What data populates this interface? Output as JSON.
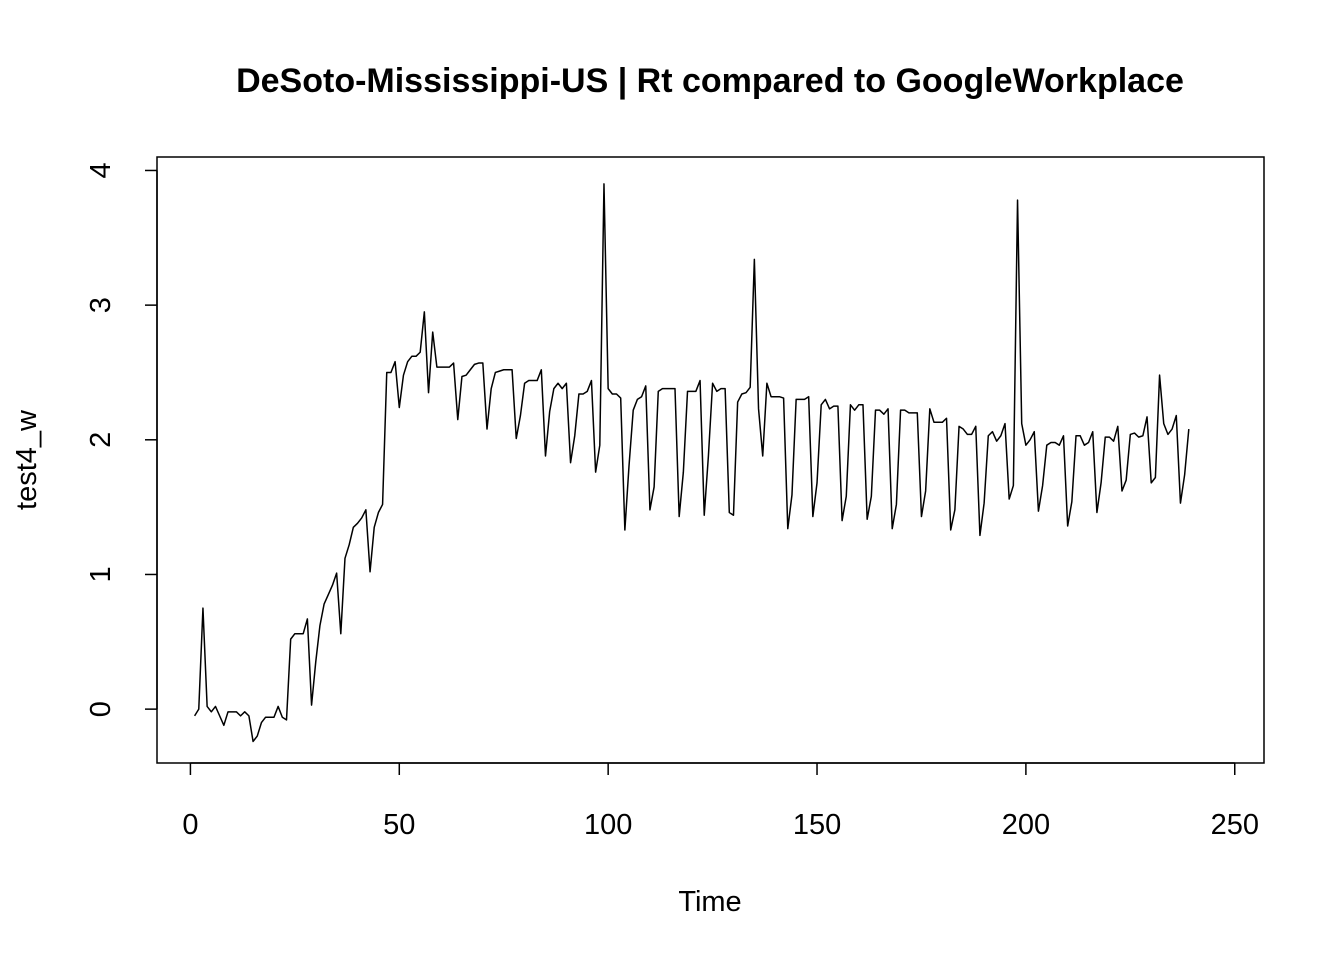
{
  "chart_data": {
    "type": "line",
    "title": "DeSoto-Mississippi-US | Rt compared to GoogleWorkplace",
    "xlabel": "Time",
    "ylabel": "test4_w",
    "xlim": [
      -8,
      257
    ],
    "ylim": [
      -0.4,
      4.1
    ],
    "x_ticks": [
      0,
      50,
      100,
      150,
      200,
      250
    ],
    "y_ticks": [
      0,
      1,
      2,
      3,
      4
    ],
    "x_tick_labels": [
      "0",
      "50",
      "100",
      "150",
      "200",
      "250"
    ],
    "y_tick_labels": [
      "0",
      "1",
      "2",
      "3",
      "4"
    ],
    "grid": false,
    "color": "#000000",
    "series": [
      {
        "x_start": 1,
        "values": [
          -0.05,
          0.0,
          0.75,
          0.02,
          -0.02,
          0.02,
          -0.05,
          -0.12,
          -0.02,
          -0.02,
          -0.02,
          -0.05,
          -0.02,
          -0.05,
          -0.24,
          -0.2,
          -0.1,
          -0.06,
          -0.06,
          -0.06,
          0.02,
          -0.06,
          -0.08,
          0.52,
          0.56,
          0.56,
          0.56,
          0.67,
          0.03,
          0.35,
          0.62,
          0.78,
          0.85,
          0.92,
          1.01,
          0.56,
          1.12,
          1.22,
          1.35,
          1.38,
          1.42,
          1.48,
          1.02,
          1.35,
          1.46,
          1.52,
          2.5,
          2.5,
          2.58,
          2.24,
          2.48,
          2.58,
          2.62,
          2.62,
          2.65,
          2.95,
          2.35,
          2.8,
          2.54,
          2.54,
          2.54,
          2.54,
          2.57,
          2.15,
          2.47,
          2.48,
          2.52,
          2.56,
          2.57,
          2.57,
          2.08,
          2.38,
          2.5,
          2.51,
          2.52,
          2.52,
          2.52,
          2.01,
          2.18,
          2.42,
          2.44,
          2.44,
          2.44,
          2.52,
          1.88,
          2.21,
          2.38,
          2.42,
          2.38,
          2.42,
          1.83,
          2.03,
          2.34,
          2.34,
          2.36,
          2.44,
          1.76,
          1.96,
          3.9,
          2.38,
          2.34,
          2.34,
          2.31,
          1.33,
          1.81,
          2.22,
          2.3,
          2.32,
          2.4,
          1.48,
          1.65,
          2.36,
          2.38,
          2.38,
          2.38,
          2.38,
          1.43,
          1.76,
          2.36,
          2.36,
          2.36,
          2.44,
          1.44,
          1.88,
          2.42,
          2.36,
          2.38,
          2.38,
          1.46,
          1.44,
          2.28,
          2.34,
          2.35,
          2.39,
          3.34,
          2.23,
          1.88,
          2.42,
          2.32,
          2.32,
          2.32,
          2.31,
          1.34,
          1.59,
          2.3,
          2.3,
          2.3,
          2.32,
          1.43,
          1.68,
          2.26,
          2.3,
          2.23,
          2.25,
          2.25,
          1.4,
          1.58,
          2.26,
          2.22,
          2.26,
          2.26,
          1.41,
          1.58,
          2.22,
          2.22,
          2.19,
          2.23,
          1.34,
          1.52,
          2.22,
          2.22,
          2.2,
          2.2,
          2.2,
          1.43,
          1.62,
          2.23,
          2.13,
          2.13,
          2.13,
          2.16,
          1.33,
          1.48,
          2.1,
          2.08,
          2.04,
          2.04,
          2.1,
          1.29,
          1.53,
          2.03,
          2.06,
          1.99,
          2.03,
          2.12,
          1.56,
          1.66,
          3.78,
          2.12,
          1.96,
          2.0,
          2.06,
          1.47,
          1.66,
          1.96,
          1.98,
          1.98,
          1.96,
          2.03,
          1.36,
          1.54,
          2.03,
          2.03,
          1.96,
          1.98,
          2.06,
          1.46,
          1.68,
          2.02,
          2.02,
          1.99,
          2.1,
          1.62,
          1.7,
          2.04,
          2.05,
          2.02,
          2.03,
          2.17,
          1.68,
          1.72,
          2.48,
          2.12,
          2.04,
          2.08,
          2.18,
          1.53,
          1.74,
          2.08
        ]
      }
    ]
  }
}
